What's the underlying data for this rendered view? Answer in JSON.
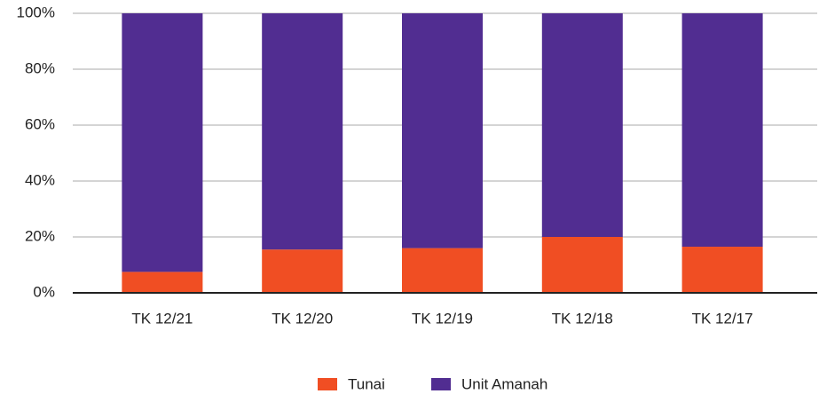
{
  "chart_data": {
    "type": "stacked_bar",
    "categories": [
      "TK 12/21",
      "TK 12/20",
      "TK 12/19",
      "TK 12/18",
      "TK 12/17"
    ],
    "series": [
      {
        "name": "Tunai",
        "color": "#f04e23",
        "values": [
          7.5,
          15.5,
          16,
          20,
          16.5
        ]
      },
      {
        "name": "Unit Amanah",
        "color": "#512d91",
        "values": [
          92.5,
          84.5,
          84,
          80,
          83.5
        ]
      }
    ],
    "ylim": [
      0,
      100
    ],
    "yticks": [
      {
        "value": 0,
        "label": "0%"
      },
      {
        "value": 20,
        "label": "20%"
      },
      {
        "value": 40,
        "label": "40%"
      },
      {
        "value": 60,
        "label": "60%"
      },
      {
        "value": 80,
        "label": "80%"
      },
      {
        "value": 100,
        "label": "100%"
      }
    ],
    "grid": true,
    "legend": "bottom"
  }
}
